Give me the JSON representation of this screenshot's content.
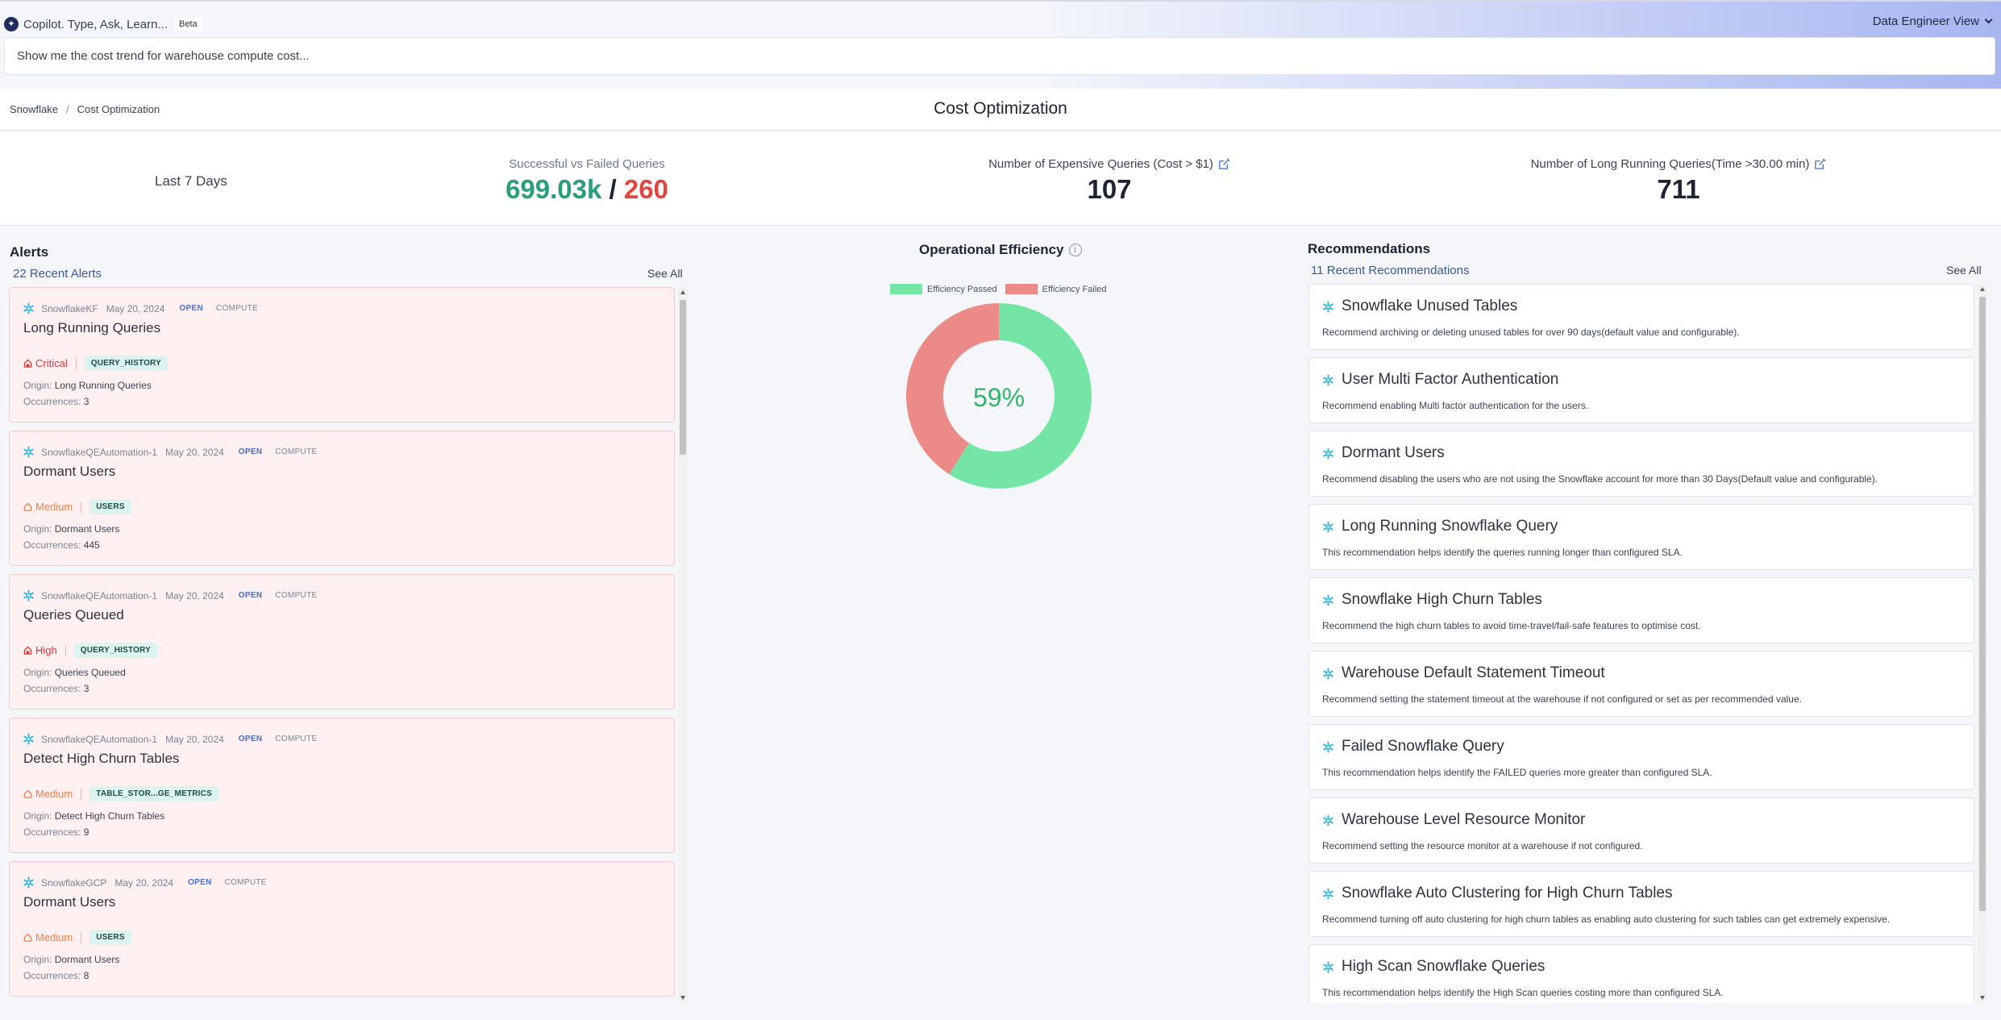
{
  "copilot": {
    "title": "Copilot. Type, Ask, Learn...",
    "badge": "Beta",
    "input_value": "Show me the cost trend for warehouse compute cost...",
    "view_label": "Data Engineer View"
  },
  "breadcrumb": {
    "root": "Snowflake",
    "separator": "/",
    "current": "Cost Optimization"
  },
  "page_title": "Cost Optimization",
  "metrics": {
    "range": "Last 7 Days",
    "queries_label": "Successful vs Failed Queries",
    "successful": "699.03k",
    "divider": "/",
    "failed": "260",
    "expensive_label": "Number of Expensive Queries (Cost > $1)",
    "expensive_value": "107",
    "long_running_label": "Number of Long Running Queries(Time >30.00 min)",
    "long_running_value": "711"
  },
  "alerts": {
    "title": "Alerts",
    "subtitle": "22 Recent Alerts",
    "see_all": "See All",
    "origin_key": "Origin:",
    "occurrences_key": "Occurrences:",
    "items": [
      {
        "source": "SnowflakeKF",
        "date": "May 20, 2024",
        "status": "OPEN",
        "category": "COMPUTE",
        "title": "Long Running Queries",
        "severity": "Critical",
        "tag": "QUERY_HISTORY",
        "origin": "Long Running Queries",
        "occurrences": "3"
      },
      {
        "source": "SnowflakeQEAutomation-1",
        "date": "May 20, 2024",
        "status": "OPEN",
        "category": "COMPUTE",
        "title": "Dormant Users",
        "severity": "Medium",
        "tag": "USERS",
        "origin": "Dormant Users",
        "occurrences": "445"
      },
      {
        "source": "SnowflakeQEAutomation-1",
        "date": "May 20, 2024",
        "status": "OPEN",
        "category": "COMPUTE",
        "title": "Queries Queued",
        "severity": "High",
        "tag": "QUERY_HISTORY",
        "origin": "Queries Queued",
        "occurrences": "3"
      },
      {
        "source": "SnowflakeQEAutomation-1",
        "date": "May 20, 2024",
        "status": "OPEN",
        "category": "COMPUTE",
        "title": "Detect High Churn Tables",
        "severity": "Medium",
        "tag": "TABLE_STOR...GE_METRICS",
        "origin": "Detect High Churn Tables",
        "occurrences": "9"
      },
      {
        "source": "SnowflakeGCP",
        "date": "May 20, 2024",
        "status": "OPEN",
        "category": "COMPUTE",
        "title": "Dormant Users",
        "severity": "Medium",
        "tag": "USERS",
        "origin": "Dormant Users",
        "occurrences": "8"
      }
    ]
  },
  "efficiency": {
    "title": "Operational Efficiency",
    "passed_label": "Efficiency Passed",
    "failed_label": "Efficiency Failed",
    "center_label": "59%",
    "passed_color": "#74e5a5",
    "failed_color": "#ec8a87"
  },
  "chart_data": {
    "type": "pie",
    "categories": [
      "Efficiency Passed",
      "Efficiency Failed"
    ],
    "values": [
      59,
      41
    ],
    "title": "Operational Efficiency",
    "legend": "top"
  },
  "recommendations": {
    "title": "Recommendations",
    "subtitle": "11 Recent Recommendations",
    "see_all": "See All",
    "items": [
      {
        "title": "Snowflake Unused Tables",
        "desc": "Recommend archiving or deleting unused tables for over 90 days(default value and configurable)."
      },
      {
        "title": "User Multi Factor Authentication",
        "desc": "Recommend enabling Multi factor authentication for the users."
      },
      {
        "title": "Dormant Users",
        "desc": "Recommend disabling the users who are not using the Snowflake account for more than 30 Days(Default value and configurable)."
      },
      {
        "title": "Long Running Snowflake Query",
        "desc": "This recommendation helps identify the queries running longer than configured SLA."
      },
      {
        "title": "Snowflake High Churn Tables",
        "desc": "Recommend the high churn tables to avoid time-travel/fail-safe features to optimise cost."
      },
      {
        "title": "Warehouse Default Statement Timeout",
        "desc": "Recommend setting the statement timeout at the warehouse if not configured or set as per recommended value."
      },
      {
        "title": "Failed Snowflake Query",
        "desc": "This recommendation helps identify the FAILED queries more greater than configured SLA."
      },
      {
        "title": "Warehouse Level Resource Monitor",
        "desc": "Recommend setting the resource monitor at a warehouse if not configured."
      },
      {
        "title": "Snowflake Auto Clustering for High Churn Tables",
        "desc": "Recommend turning off auto clustering for high churn tables as enabling auto clustering for such tables can get extremely expensive."
      },
      {
        "title": "High Scan Snowflake Queries",
        "desc": "This recommendation helps identify the High Scan queries costing more than configured SLA."
      }
    ]
  },
  "colors": {
    "critical": "#d23b3b",
    "high": "#d23b3b",
    "medium": "#e8804a",
    "snowflake": "#29b5e8"
  }
}
